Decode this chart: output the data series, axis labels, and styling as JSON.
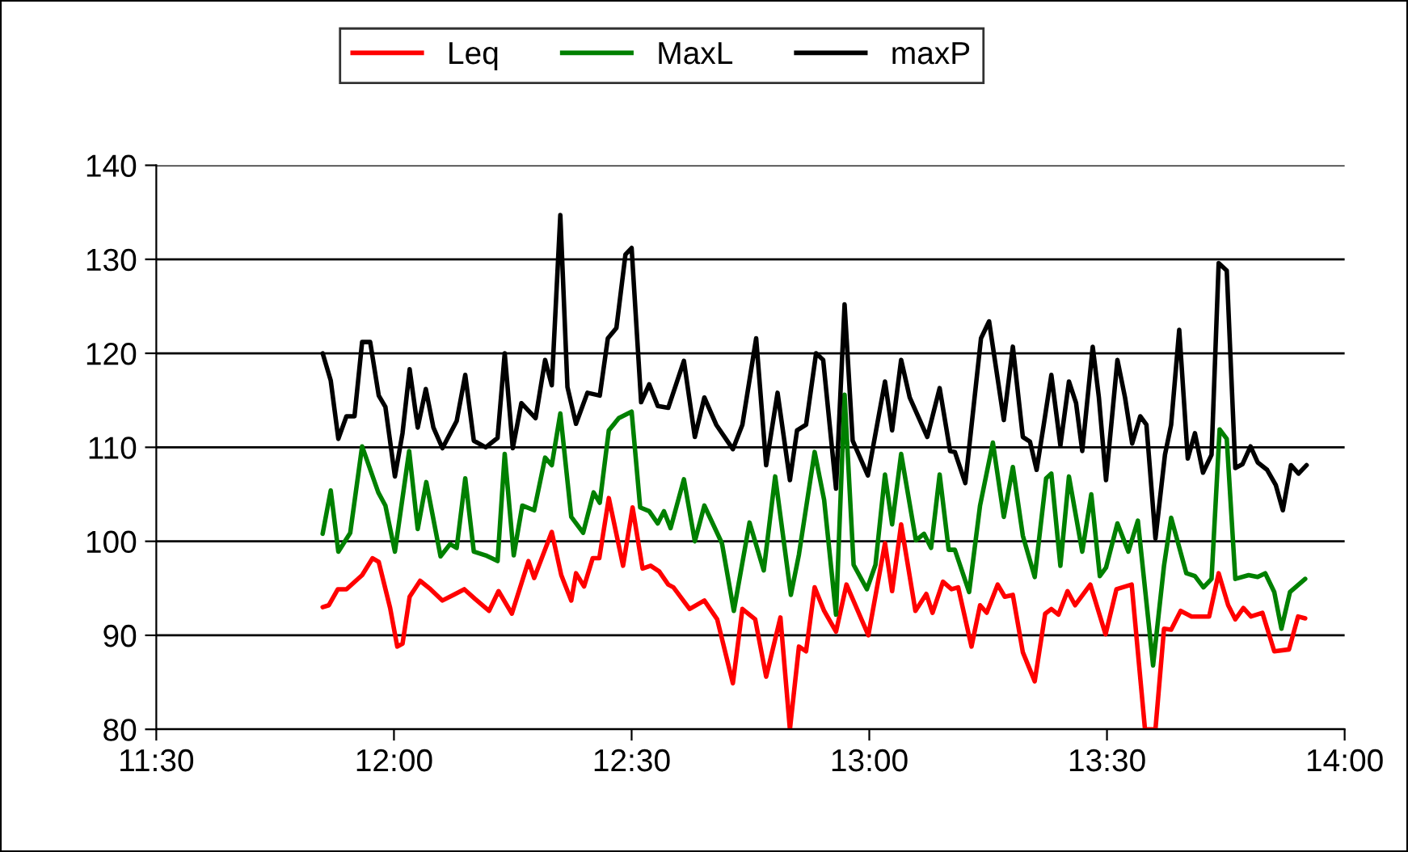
{
  "chart_data": {
    "type": "line",
    "xlim": [
      11.5,
      14.0
    ],
    "xticks": [
      {
        "value": 11.5,
        "label": "11:30"
      },
      {
        "value": 12.0,
        "label": "12:00"
      },
      {
        "value": 12.5,
        "label": "12:30"
      },
      {
        "value": 13.0,
        "label": "13:00"
      },
      {
        "value": 13.5,
        "label": "13:30"
      },
      {
        "value": 14.0,
        "label": "14:00"
      }
    ],
    "ylim": [
      80,
      140
    ],
    "yticks": [
      80,
      90,
      100,
      110,
      120,
      130,
      140
    ],
    "grid": "y",
    "legend": "top",
    "marker": "none",
    "line_style": "solid",
    "series": [
      {
        "name": "Leq",
        "color": "#ff0000",
        "x": [
          11.85,
          11.863,
          11.882,
          11.9,
          11.933,
          11.955,
          11.968,
          11.992,
          12.007,
          12.018,
          12.033,
          12.055,
          12.077,
          12.102,
          12.125,
          12.148,
          12.17,
          12.2,
          12.22,
          12.248,
          12.283,
          12.295,
          12.332,
          12.352,
          12.373,
          12.383,
          12.4,
          12.418,
          12.432,
          12.452,
          12.482,
          12.502,
          12.523,
          12.54,
          12.558,
          12.577,
          12.588,
          12.622,
          12.653,
          12.68,
          12.713,
          12.733,
          12.76,
          12.783,
          12.813,
          12.833,
          12.852,
          12.867,
          12.885,
          12.905,
          12.93,
          12.952,
          12.998,
          13.033,
          13.048,
          13.067,
          13.097,
          13.12,
          13.133,
          13.155,
          13.173,
          13.187,
          13.215,
          13.233,
          13.247,
          13.27,
          13.285,
          13.302,
          13.323,
          13.348,
          13.37,
          13.383,
          13.398,
          13.417,
          13.433,
          13.465,
          13.497,
          13.52,
          13.552,
          13.58,
          13.602,
          13.62,
          13.635,
          13.655,
          13.678,
          13.715,
          13.735,
          13.755,
          13.77,
          13.787,
          13.803,
          13.827,
          13.852,
          13.883,
          13.902,
          13.917
        ],
        "values": [
          93,
          93.2,
          94.9,
          94.9,
          96.4,
          98.2,
          97.8,
          92.9,
          88.8,
          89.1,
          94.1,
          95.8,
          94.9,
          93.7,
          94.3,
          94.9,
          93.9,
          92.6,
          94.7,
          92.3,
          97.9,
          96.1,
          101,
          96.4,
          93.7,
          96.6,
          95.2,
          98.2,
          98.2,
          104.6,
          97.4,
          103.6,
          97.1,
          97.4,
          96.8,
          95.4,
          95.1,
          92.8,
          93.7,
          91.7,
          84.9,
          92.8,
          91.7,
          85.6,
          91.9,
          80,
          88.8,
          88.3,
          95.1,
          92.6,
          90.4,
          95.4,
          90,
          99.8,
          94.7,
          101.8,
          92.6,
          94.4,
          92.4,
          95.7,
          94.9,
          95.1,
          88.8,
          93.2,
          92.4,
          95.4,
          94.1,
          94.3,
          88.2,
          85.1,
          92.3,
          92.8,
          92.2,
          94.7,
          93.2,
          95.4,
          90.1,
          94.9,
          95.4,
          80,
          80,
          90.7,
          90.6,
          92.6,
          92,
          92,
          96.6,
          93.2,
          91.7,
          92.9,
          92,
          92.4,
          88.3,
          88.5,
          92,
          91.8
        ]
      },
      {
        "name": "MaxL",
        "color": "#008000",
        "x": [
          11.85,
          11.867,
          11.883,
          11.908,
          11.933,
          11.967,
          11.982,
          12.002,
          12.032,
          12.05,
          12.068,
          12.098,
          12.118,
          12.132,
          12.15,
          12.168,
          12.193,
          12.218,
          12.233,
          12.252,
          12.27,
          12.295,
          12.318,
          12.332,
          12.35,
          12.373,
          12.398,
          12.42,
          12.433,
          12.452,
          12.473,
          12.5,
          12.518,
          12.537,
          12.555,
          12.568,
          12.582,
          12.61,
          12.633,
          12.653,
          12.69,
          12.715,
          12.748,
          12.778,
          12.802,
          12.835,
          12.852,
          12.885,
          12.905,
          12.93,
          12.948,
          12.967,
          12.995,
          13.013,
          13.033,
          13.048,
          13.067,
          13.098,
          13.115,
          13.13,
          13.148,
          13.167,
          13.18,
          13.21,
          13.233,
          13.26,
          13.283,
          13.302,
          13.323,
          13.348,
          13.372,
          13.383,
          13.402,
          13.42,
          13.448,
          13.467,
          13.485,
          13.498,
          13.522,
          13.545,
          13.565,
          13.597,
          13.62,
          13.635,
          13.667,
          13.685,
          13.703,
          13.72,
          13.737,
          13.752,
          13.77,
          13.798,
          13.817,
          13.833,
          13.852,
          13.867,
          13.885,
          13.917
        ],
        "values": [
          100.8,
          105.4,
          98.9,
          100.9,
          110.1,
          105.2,
          103.8,
          98.9,
          109.6,
          101.3,
          106.3,
          98.4,
          99.7,
          99.3,
          106.7,
          98.9,
          98.5,
          97.9,
          109.3,
          98.5,
          103.8,
          103.3,
          108.9,
          108.1,
          113.6,
          102.6,
          100.9,
          105.2,
          104.1,
          111.8,
          113.1,
          113.8,
          103.6,
          103.2,
          101.9,
          103.2,
          101.4,
          106.6,
          100,
          103.8,
          99.8,
          92.6,
          102,
          96.9,
          106.9,
          94.3,
          98.6,
          109.5,
          104.4,
          92.2,
          115.6,
          97.5,
          94.9,
          97.5,
          107.1,
          101.8,
          109.3,
          100.1,
          100.8,
          99.3,
          107.1,
          99.1,
          99.1,
          94.6,
          103.8,
          110.5,
          102.6,
          107.9,
          100.6,
          96.2,
          106.7,
          107.2,
          97.4,
          106.9,
          98.9,
          105,
          96.3,
          97.2,
          101.9,
          98.9,
          102.2,
          86.8,
          97.4,
          102.5,
          96.6,
          96.3,
          95.1,
          96,
          111.9,
          110.9,
          96,
          96.4,
          96.2,
          96.6,
          94.6,
          90.7,
          94.6,
          96
        ]
      },
      {
        "name": "maxP",
        "color": "#000000",
        "x": [
          11.85,
          11.867,
          11.883,
          11.9,
          11.917,
          11.933,
          11.95,
          11.968,
          11.982,
          12.002,
          12.018,
          12.033,
          12.05,
          12.067,
          12.083,
          12.102,
          12.132,
          12.15,
          12.168,
          12.193,
          12.218,
          12.233,
          12.25,
          12.268,
          12.298,
          12.318,
          12.332,
          12.35,
          12.365,
          12.383,
          12.407,
          12.433,
          12.45,
          12.468,
          12.487,
          12.5,
          12.52,
          12.537,
          12.555,
          12.577,
          12.61,
          12.633,
          12.653,
          12.678,
          12.713,
          12.733,
          12.762,
          12.783,
          12.807,
          12.833,
          12.848,
          12.867,
          12.888,
          12.903,
          12.93,
          12.948,
          12.965,
          12.997,
          13.033,
          13.048,
          13.067,
          13.085,
          13.122,
          13.148,
          13.17,
          13.18,
          13.202,
          13.235,
          13.252,
          13.283,
          13.302,
          13.323,
          13.338,
          13.352,
          13.367,
          13.383,
          13.402,
          13.42,
          13.435,
          13.448,
          13.47,
          13.483,
          13.498,
          13.522,
          13.538,
          13.553,
          13.57,
          13.583,
          13.602,
          13.622,
          13.635,
          13.652,
          13.67,
          13.685,
          13.702,
          13.72,
          13.735,
          13.752,
          13.77,
          13.785,
          13.802,
          13.817,
          13.837,
          13.855,
          13.87,
          13.887,
          13.903,
          13.92
        ],
        "values": [
          120,
          117.1,
          110.9,
          113.3,
          113.3,
          121.2,
          121.2,
          115.5,
          114.3,
          106.9,
          111.5,
          118.3,
          112.1,
          116.2,
          112.1,
          109.9,
          112.8,
          117.7,
          110.7,
          110,
          111,
          120,
          109.9,
          114.7,
          113.1,
          119.3,
          116.6,
          134.7,
          116.4,
          112.5,
          115.8,
          115.5,
          121.6,
          122.7,
          130.5,
          131.2,
          114.8,
          116.7,
          114.4,
          114.2,
          119.2,
          111.1,
          115.3,
          112.4,
          109.8,
          112.4,
          121.6,
          108.1,
          115.8,
          106.5,
          111.8,
          112.4,
          120,
          119.3,
          105.6,
          125.2,
          110.7,
          107,
          117,
          111.8,
          119.3,
          115.3,
          111.1,
          116.3,
          109.6,
          109.5,
          106.2,
          121.6,
          123.4,
          112.9,
          120.7,
          111.1,
          110.6,
          107.6,
          112.4,
          117.7,
          110.2,
          117,
          114.7,
          109.6,
          120.7,
          115.3,
          106.5,
          119.3,
          115.3,
          110.4,
          113.3,
          112.4,
          100.3,
          109.2,
          112.4,
          122.5,
          108.8,
          111.5,
          107.3,
          109.2,
          129.6,
          128.8,
          107.8,
          108.2,
          110.1,
          108.4,
          107.6,
          106,
          103.3,
          108.1,
          107.2,
          108.1
        ]
      }
    ]
  }
}
